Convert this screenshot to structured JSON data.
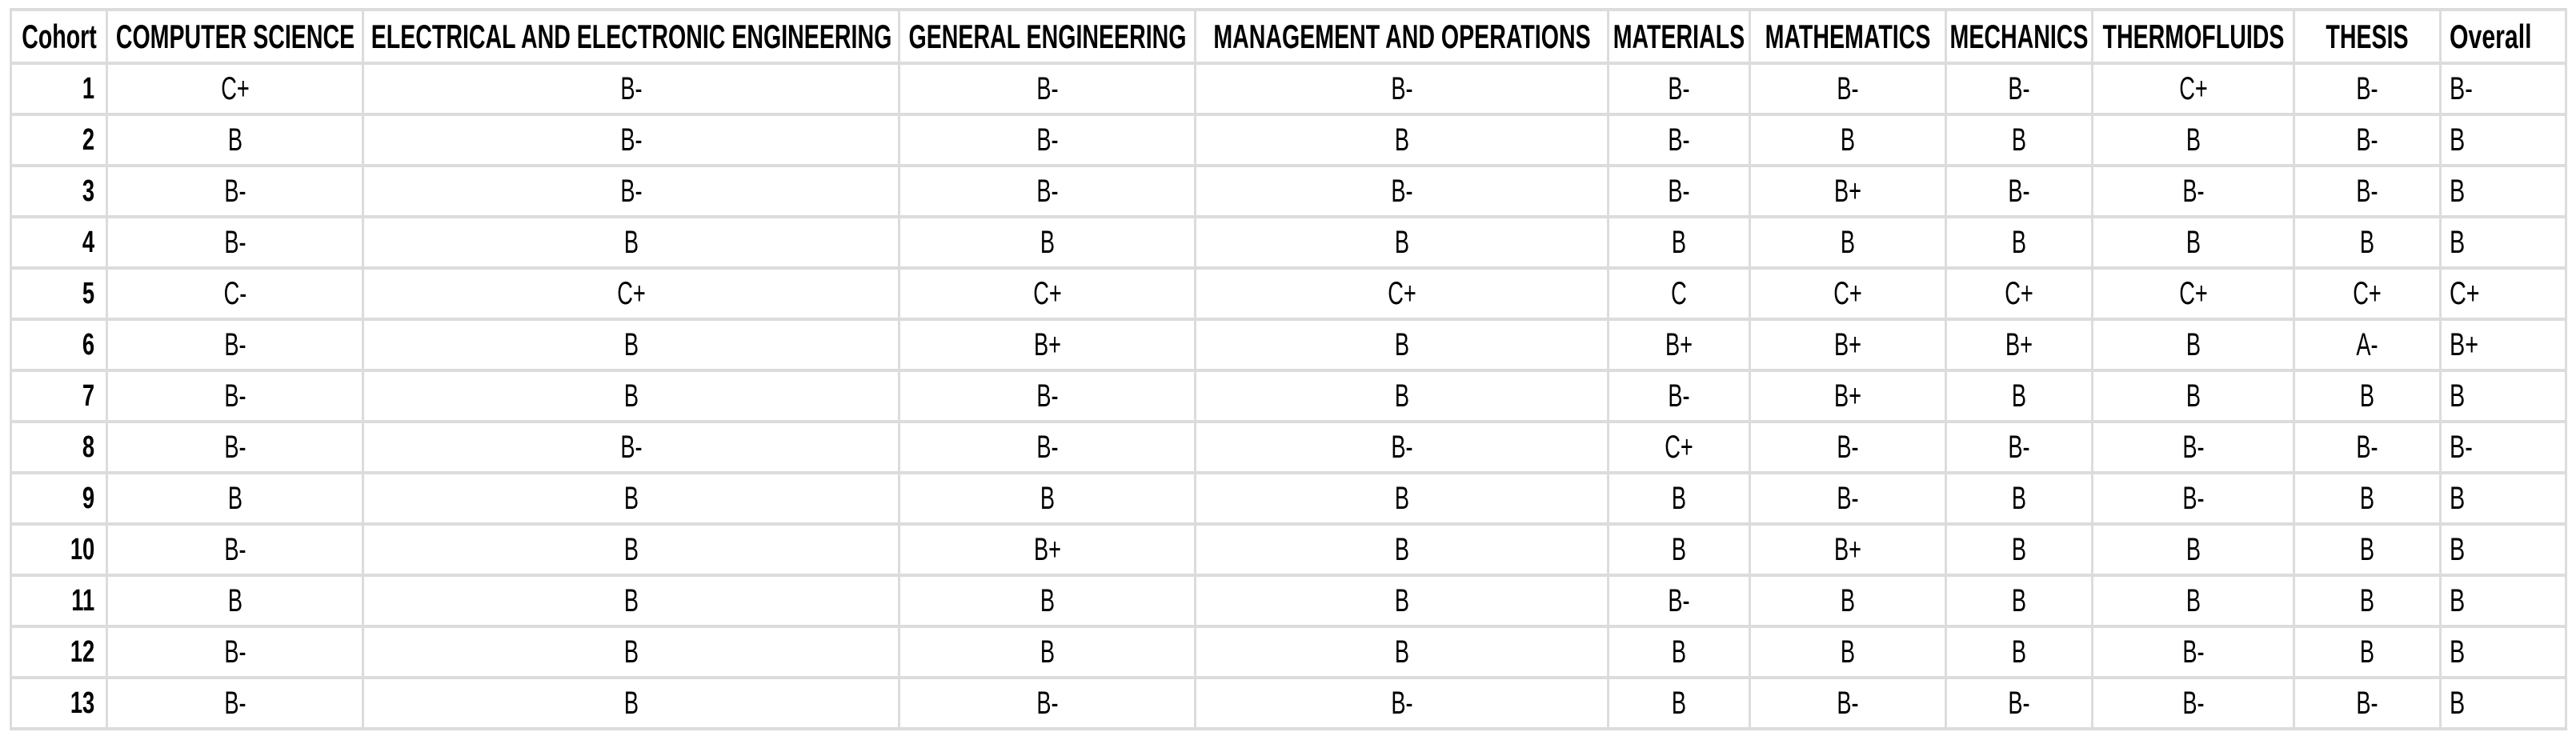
{
  "table": {
    "headers": [
      "Cohort",
      "COMPUTER SCIENCE",
      "ELECTRICAL AND ELECTRONIC ENGINEERING",
      "GENERAL ENGINEERING",
      "MANAGEMENT AND OPERATIONS",
      "MATERIALS",
      "MATHEMATICS",
      "MECHANICS",
      "THERMOFLUIDS",
      "THESIS",
      "Overall"
    ],
    "rows": [
      [
        "1",
        "C+",
        "B-",
        "B-",
        "B-",
        "B-",
        "B-",
        "B-",
        "C+",
        "B-",
        "B-"
      ],
      [
        "2",
        "B",
        "B-",
        "B-",
        "B",
        "B-",
        "B",
        "B",
        "B",
        "B-",
        "B"
      ],
      [
        "3",
        "B-",
        "B-",
        "B-",
        "B-",
        "B-",
        "B+",
        "B-",
        "B-",
        "B-",
        "B"
      ],
      [
        "4",
        "B-",
        "B",
        "B",
        "B",
        "B",
        "B",
        "B",
        "B",
        "B",
        "B"
      ],
      [
        "5",
        "C-",
        "C+",
        "C+",
        "C+",
        "C",
        "C+",
        "C+",
        "C+",
        "C+",
        "C+"
      ],
      [
        "6",
        "B-",
        "B",
        "B+",
        "B",
        "B+",
        "B+",
        "B+",
        "B",
        "A-",
        "B+"
      ],
      [
        "7",
        "B-",
        "B",
        "B-",
        "B",
        "B-",
        "B+",
        "B",
        "B",
        "B",
        "B"
      ],
      [
        "8",
        "B-",
        "B-",
        "B-",
        "B-",
        "C+",
        "B-",
        "B-",
        "B-",
        "B-",
        "B-"
      ],
      [
        "9",
        "B",
        "B",
        "B",
        "B",
        "B",
        "B-",
        "B",
        "B-",
        "B",
        "B"
      ],
      [
        "10",
        "B-",
        "B",
        "B+",
        "B",
        "B",
        "B+",
        "B",
        "B",
        "B",
        "B"
      ],
      [
        "11",
        "B",
        "B",
        "B",
        "B",
        "B-",
        "B",
        "B",
        "B",
        "B",
        "B"
      ],
      [
        "12",
        "B-",
        "B",
        "B",
        "B",
        "B",
        "B",
        "B",
        "B-",
        "B",
        "B"
      ],
      [
        "13",
        "B-",
        "B",
        "B-",
        "B-",
        "B",
        "B-",
        "B-",
        "B-",
        "B-",
        "B"
      ]
    ],
    "grid_color": "#dcdcdc",
    "text_color": "#000000"
  }
}
